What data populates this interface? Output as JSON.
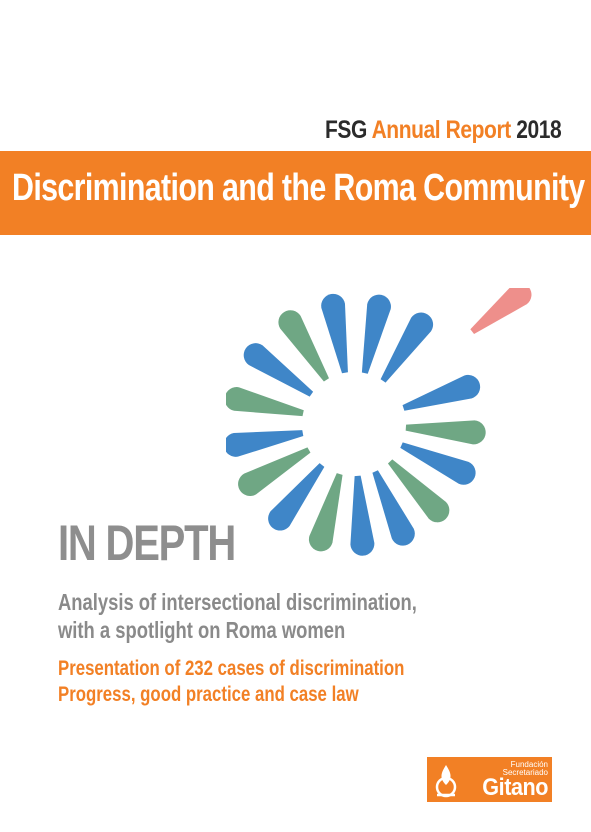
{
  "header": {
    "org": "FSG",
    "series": "Annual Report",
    "year": "2018"
  },
  "banner": {
    "title": "Discrimination and the Roma Community"
  },
  "main": {
    "heading": "IN DEPTH",
    "subtitle_lines": [
      "Analysis of intersectional discrimination,",
      "with a spotlight on Roma women"
    ],
    "highlight_lines": [
      "Presentation of 232 cases of discrimination",
      "Progress, good practice and case law"
    ]
  },
  "logo": {
    "org_line1": "Fundación",
    "org_line2": "Secretariado",
    "name": "Gitano"
  },
  "graphic": {
    "icon": "radial-burst-graphic",
    "colors": {
      "blue": "#3f86c8",
      "green": "#6fa784",
      "pink": "#ee8f8b",
      "orange": "#f28025"
    }
  }
}
